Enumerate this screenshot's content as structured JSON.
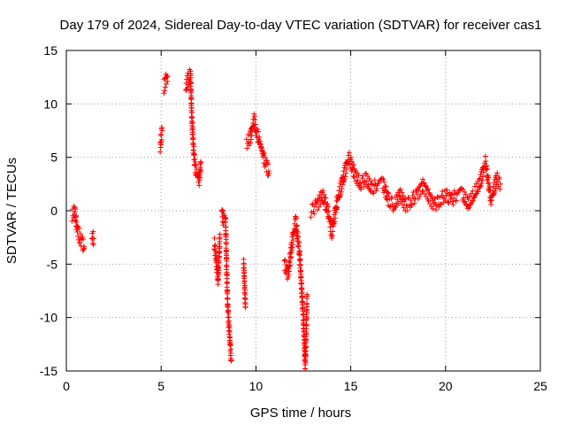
{
  "chart_data": {
    "type": "scatter",
    "title": "Day 179 of 2024, Sidereal Day-to-day VTEC variation (SDTVAR) for receiver cas1",
    "xlabel": "GPS time / hours",
    "ylabel": "SDTVAR / TECUs",
    "xlim": [
      0,
      25
    ],
    "ylim": [
      -15,
      15
    ],
    "xticks": [
      "0",
      "5",
      "10",
      "15",
      "20",
      "25"
    ],
    "yticks": [
      "-15",
      "-10",
      "-5",
      "0",
      "5",
      "10",
      "15"
    ],
    "grid": true,
    "marker": "+",
    "series": [
      {
        "name": "SDTVAR",
        "color": "#ff0000",
        "segments": [
          {
            "x": [
              0.3,
              0.45,
              0.55,
              0.7,
              0.85,
              0.95
            ],
            "y": [
              -0.5,
              0.0,
              -1.5,
              -2.5,
              -3.0,
              -3.5
            ]
          },
          {
            "x": [
              1.35,
              1.4,
              1.45
            ],
            "y": [
              -2.3,
              -2.5,
              -2.6
            ]
          },
          {
            "x": [
              4.95,
              5.0,
              5.05
            ],
            "y": [
              6.0,
              6.8,
              7.5
            ]
          },
          {
            "x": [
              5.15,
              5.25,
              5.35
            ],
            "y": [
              11.6,
              12.2,
              12.6
            ]
          },
          {
            "x": [
              6.3,
              6.45,
              6.55,
              6.6,
              6.7,
              6.8,
              7.0,
              7.1
            ],
            "y": [
              11.5,
              12.5,
              12.8,
              9.5,
              6.0,
              4.0,
              2.8,
              4.5
            ]
          },
          {
            "x": [
              7.8,
              7.9,
              8.0,
              8.1
            ],
            "y": [
              -3.0,
              -4.5,
              -6.5,
              -2.5
            ]
          },
          {
            "x": [
              8.2,
              8.3,
              8.4,
              8.5,
              8.6,
              8.7
            ],
            "y": [
              0.0,
              -1.0,
              -1.0,
              -8.5,
              -11.5,
              -14.0
            ]
          },
          {
            "x": [
              9.35,
              9.45
            ],
            "y": [
              -4.8,
              -9.0
            ]
          },
          {
            "x": [
              9.5,
              9.7,
              9.9,
              10.0,
              10.2,
              10.4,
              10.6,
              10.7
            ],
            "y": [
              6.3,
              6.8,
              8.5,
              7.5,
              6.5,
              5.0,
              4.0,
              3.5
            ]
          },
          {
            "x": [
              11.5,
              11.7,
              11.9,
              12.1,
              12.3,
              12.5,
              12.6,
              12.7
            ],
            "y": [
              -5.0,
              -6.0,
              -3.0,
              -1.0,
              -4.0,
              -10.0,
              -14.5,
              -8.0
            ]
          },
          {
            "x": [
              12.9,
              13.2,
              13.5,
              13.8,
              14.0,
              14.3,
              14.6,
              14.9,
              15.2,
              15.5,
              15.8,
              16.1,
              16.4,
              16.7,
              17.0,
              17.3,
              17.6,
              17.9,
              18.2,
              18.5,
              18.8,
              19.1,
              19.4,
              19.7,
              20.0,
              20.3,
              20.6,
              20.9,
              21.2,
              21.5,
              21.8,
              22.1,
              22.4,
              22.7,
              22.9
            ],
            "y": [
              0.0,
              0.5,
              1.5,
              0.0,
              -2.0,
              1.0,
              3.0,
              5.0,
              3.5,
              2.5,
              3.0,
              2.0,
              2.5,
              2.5,
              1.0,
              0.5,
              1.5,
              0.5,
              1.0,
              1.5,
              2.5,
              1.5,
              0.5,
              1.0,
              1.5,
              1.0,
              1.5,
              1.5,
              0.5,
              1.5,
              2.5,
              4.5,
              1.0,
              3.0,
              2.5
            ]
          }
        ]
      }
    ]
  }
}
